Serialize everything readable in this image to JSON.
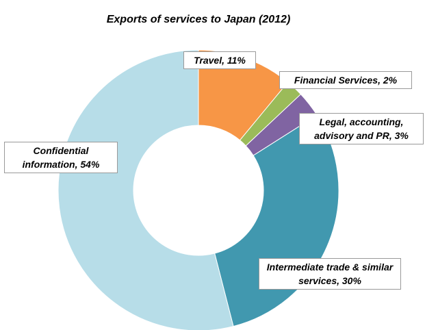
{
  "chart_data": {
    "type": "donut",
    "title": "Exports of services to Japan (2012)",
    "values": [
      11,
      2,
      3,
      30,
      54
    ],
    "value_labels": [
      "Travel, 11%",
      "Financial Services, 2%",
      "Legal, accounting, advisory and PR, 3%",
      "Intermediate trade & similar services, 30%",
      "Confidential information, 54%"
    ],
    "colors": [
      "#f79646",
      "#9bbb59",
      "#8064a2",
      "#4198af",
      "#b7dde8"
    ]
  }
}
